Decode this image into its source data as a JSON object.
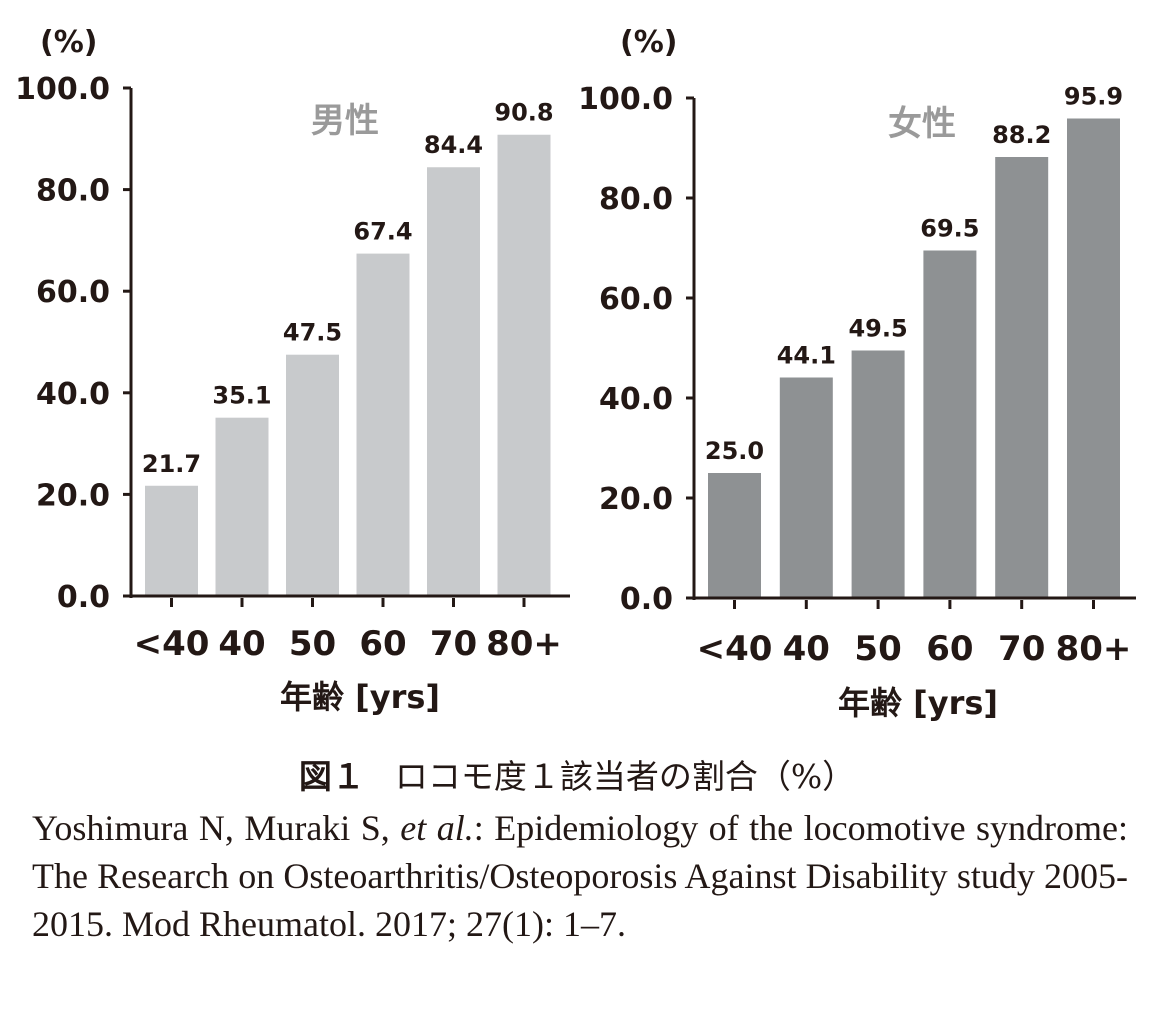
{
  "chart_data": [
    {
      "type": "bar",
      "title": "男性",
      "unit_label": "(%)",
      "xlabel": "年齢 [yrs]",
      "ylabel": "(%)",
      "categories": [
        "<40",
        "40",
        "50",
        "60",
        "70",
        "80+"
      ],
      "values": [
        21.7,
        35.1,
        47.5,
        67.4,
        84.4,
        90.8
      ],
      "value_labels": [
        "21.7",
        "35.1",
        "47.5",
        "67.4",
        "84.4",
        "90.8"
      ],
      "ylim": [
        0,
        100
      ],
      "yticks": [
        0,
        20,
        40,
        60,
        80,
        100
      ],
      "ytick_labels": [
        "0.0",
        "20.0",
        "40.0",
        "60.0",
        "80.0",
        "100.0"
      ],
      "grid": false,
      "bar_color": "#c8cacc"
    },
    {
      "type": "bar",
      "title": "女性",
      "unit_label": "(%)",
      "xlabel": "年齢 [yrs]",
      "ylabel": "(%)",
      "categories": [
        "<40",
        "40",
        "50",
        "60",
        "70",
        "80+"
      ],
      "values": [
        25.0,
        44.1,
        49.5,
        69.5,
        88.2,
        95.9
      ],
      "value_labels": [
        "25.0",
        "44.1",
        "49.5",
        "69.5",
        "88.2",
        "95.9"
      ],
      "ylim": [
        0,
        100
      ],
      "yticks": [
        0,
        20,
        40,
        60,
        80,
        100
      ],
      "ytick_labels": [
        "0.0",
        "20.0",
        "40.0",
        "60.0",
        "80.0",
        "100.0"
      ],
      "grid": false,
      "bar_color": "#8e9193"
    }
  ],
  "caption": {
    "figure_number": "図１",
    "text": "ロコモ度１該当者の割合（%）"
  },
  "citation": {
    "authors": "Yoshimura N, Muraki S, ",
    "etal": "et al.",
    "rest": ": Epidemiology of the locomotive syndrome: The Research on Osteoarthritis/Osteoporosis Against Disability study 2005-2015. Mod Rheumatol. 2017; 27(1): 1–7."
  },
  "colors": {
    "axis": "#231815",
    "title_text": "#9a9a9a"
  }
}
